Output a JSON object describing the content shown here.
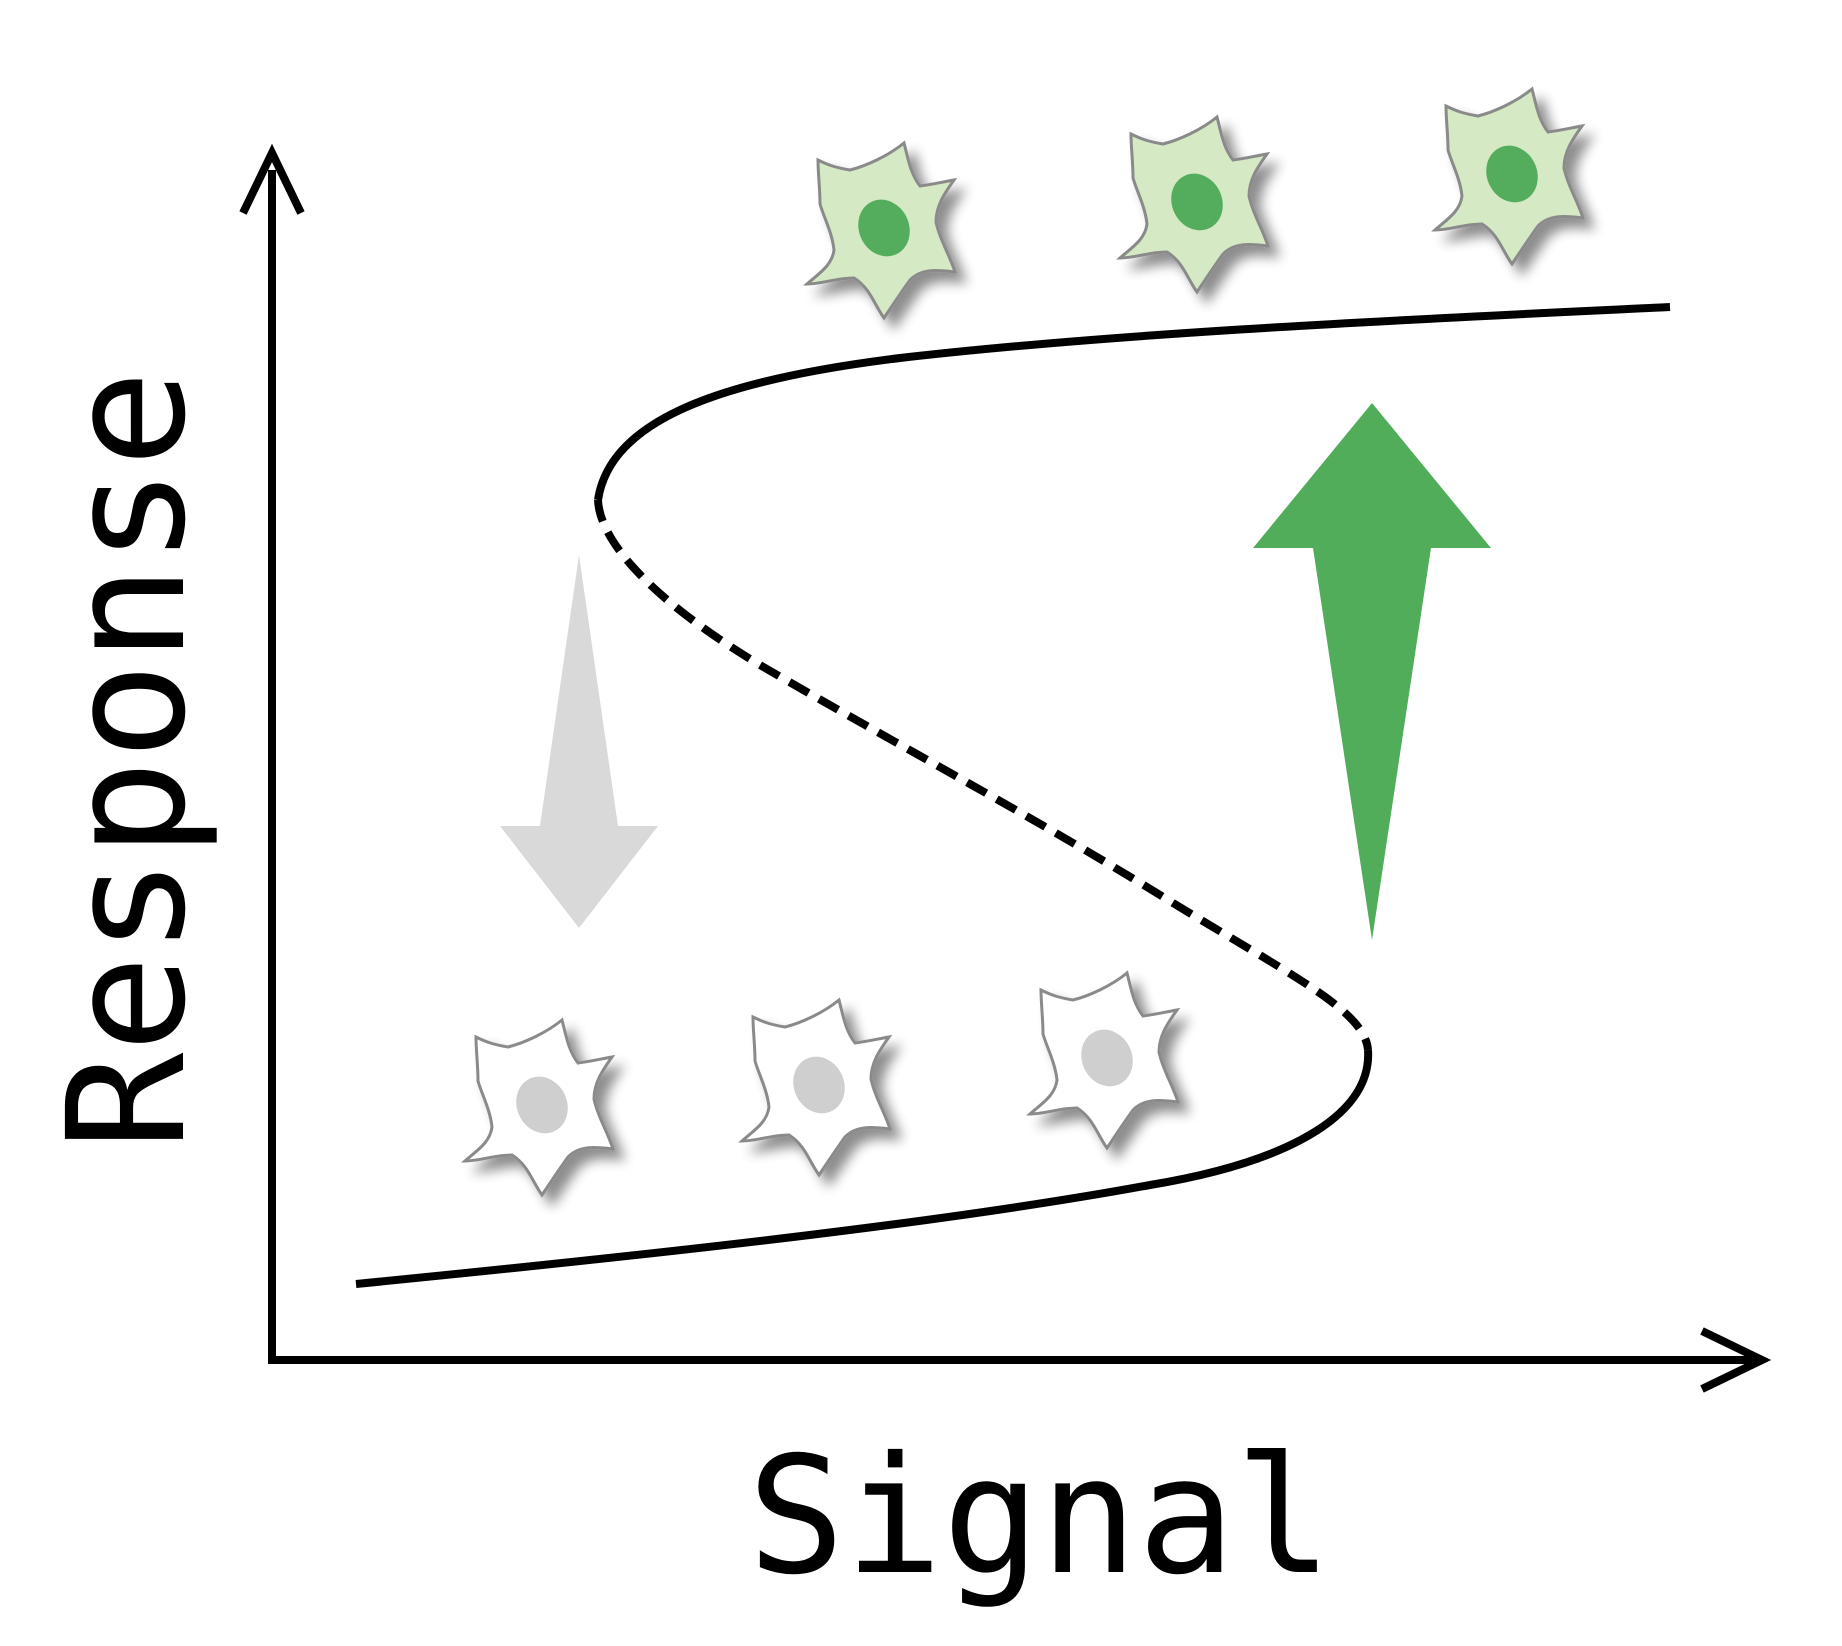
{
  "labels": {
    "y_axis": "Response",
    "x_axis": "Signal"
  },
  "colors": {
    "axis": "#000000",
    "curve": "#000000",
    "activate_arrow": "#52ad5b",
    "deactivate_arrow": "#d9d9d9",
    "active_cell_body": "#d4e9c4",
    "active_cell_nucleus": "#52ad5b",
    "inactive_cell_body": "#ffffff",
    "inactive_cell_nucleus": "#cfcfcf",
    "cell_outline": "#8a8a8a"
  },
  "curve": {
    "upper_branch": "stable",
    "middle_branch": "unstable",
    "lower_branch": "stable"
  },
  "arrows": [
    {
      "id": "activate",
      "direction": "up",
      "color": "activate_arrow"
    },
    {
      "id": "deactivate",
      "direction": "down",
      "color": "deactivate_arrow"
    }
  ],
  "cells": {
    "active_count": 3,
    "inactive_count": 3
  }
}
